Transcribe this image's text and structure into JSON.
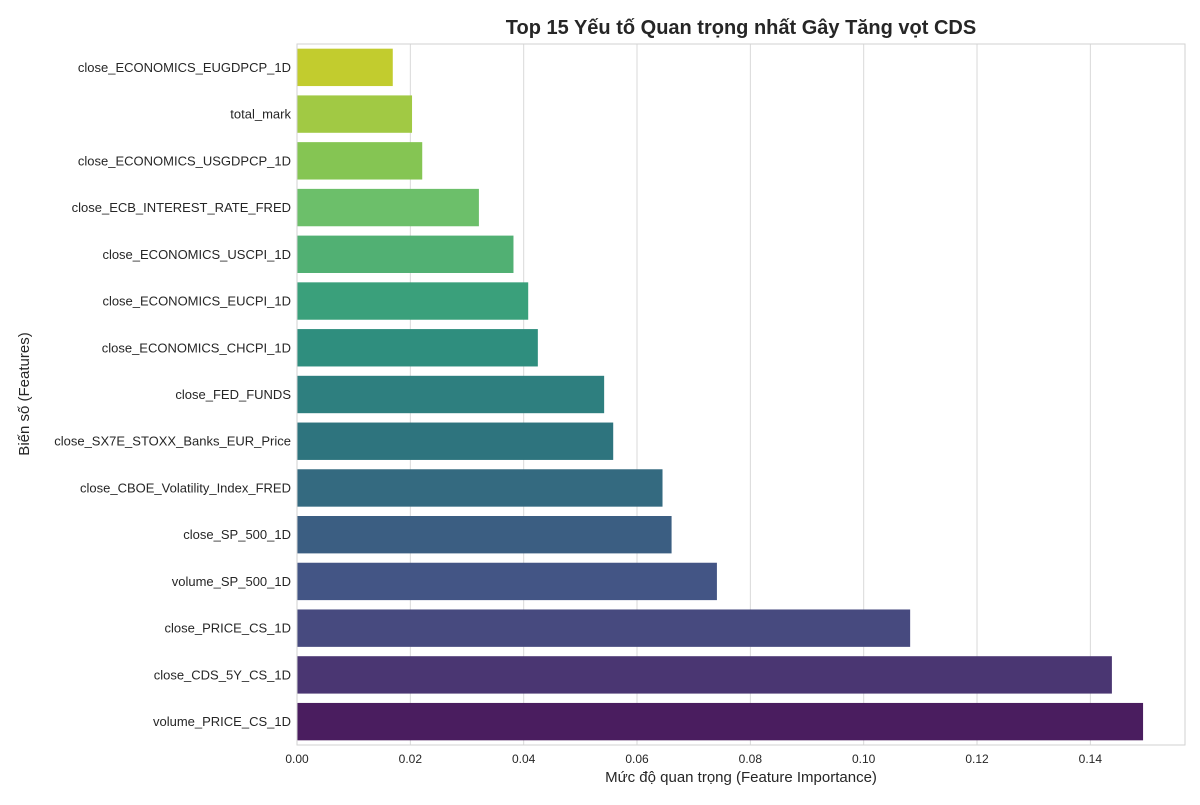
{
  "chart_data": {
    "type": "bar",
    "orientation": "horizontal",
    "title": "Top 15 Yếu tố Quan trọng nhất Gây Tăng vọt CDS",
    "xlabel": "Mức độ quan trọng (Feature Importance)",
    "ylabel": "Biến số (Features)",
    "xlim": [
      0,
      0.1567
    ],
    "xticks": [
      0.0,
      0.02,
      0.04,
      0.06,
      0.08,
      0.1,
      0.12,
      0.14
    ],
    "xtick_labels": [
      "0.00",
      "0.02",
      "0.04",
      "0.06",
      "0.08",
      "0.10",
      "0.12",
      "0.14"
    ],
    "grid": "vertical",
    "categories": [
      "close_ECONOMICS_EUGDPCP_1D",
      "total_mark",
      "close_ECONOMICS_USGDPCP_1D",
      "close_ECB_INTEREST_RATE_FRED",
      "close_ECONOMICS_USCPI_1D",
      "close_ECONOMICS_EUCPI_1D",
      "close_ECONOMICS_CHCPI_1D",
      "close_FED_FUNDS",
      "close_SX7E_STOXX_Banks_EUR_Price",
      "close_CBOE_Volatility_Index_FRED",
      "close_SP_500_1D",
      "volume_SP_500_1D",
      "close_PRICE_CS_1D",
      "close_CDS_5Y_CS_1D",
      "volume_PRICE_CS_1D"
    ],
    "values": [
      0.0169,
      0.0203,
      0.0221,
      0.0321,
      0.0382,
      0.0408,
      0.0425,
      0.0542,
      0.0558,
      0.0645,
      0.0661,
      0.0741,
      0.1082,
      0.1438,
      0.1493
    ],
    "colors": [
      "#c2cc2e",
      "#a1c944",
      "#85c553",
      "#6cbf6a",
      "#51b073",
      "#3aa07b",
      "#2f8e7e",
      "#2e7f7f",
      "#2e747e",
      "#346a80",
      "#3b5e82",
      "#435585",
      "#474a7f",
      "#4a3672",
      "#4a1d5f"
    ]
  }
}
